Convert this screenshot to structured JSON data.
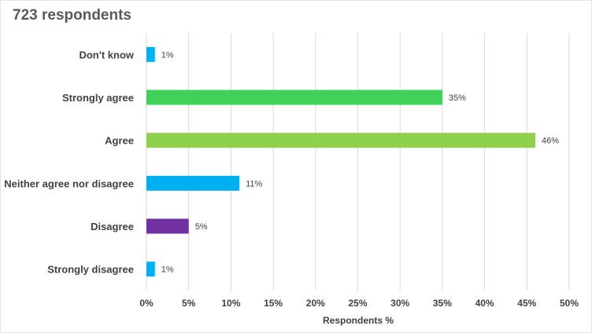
{
  "title": "723 respondents",
  "chart_data": {
    "type": "bar",
    "orientation": "horizontal",
    "title": "723 respondents",
    "xlabel": "Respondents %",
    "ylabel": "",
    "categories": [
      "Don't know",
      "Strongly agree",
      "Agree",
      "Neither agree nor disagree",
      "Disagree",
      "Strongly disagree"
    ],
    "values": [
      1,
      35,
      46,
      11,
      5,
      1
    ],
    "data_labels": [
      "1%",
      "35%",
      "46%",
      "11%",
      "5%",
      "1%"
    ],
    "colors": [
      "#00b0f0",
      "#3fd15a",
      "#8fd14f",
      "#00b0f0",
      "#7030a0",
      "#00b0f0"
    ],
    "xlim": [
      0,
      50
    ],
    "xticks": [
      "0%",
      "5%",
      "10%",
      "15%",
      "20%",
      "25%",
      "30%",
      "35%",
      "40%",
      "45%",
      "50%"
    ],
    "grid": true,
    "legend": "none"
  }
}
